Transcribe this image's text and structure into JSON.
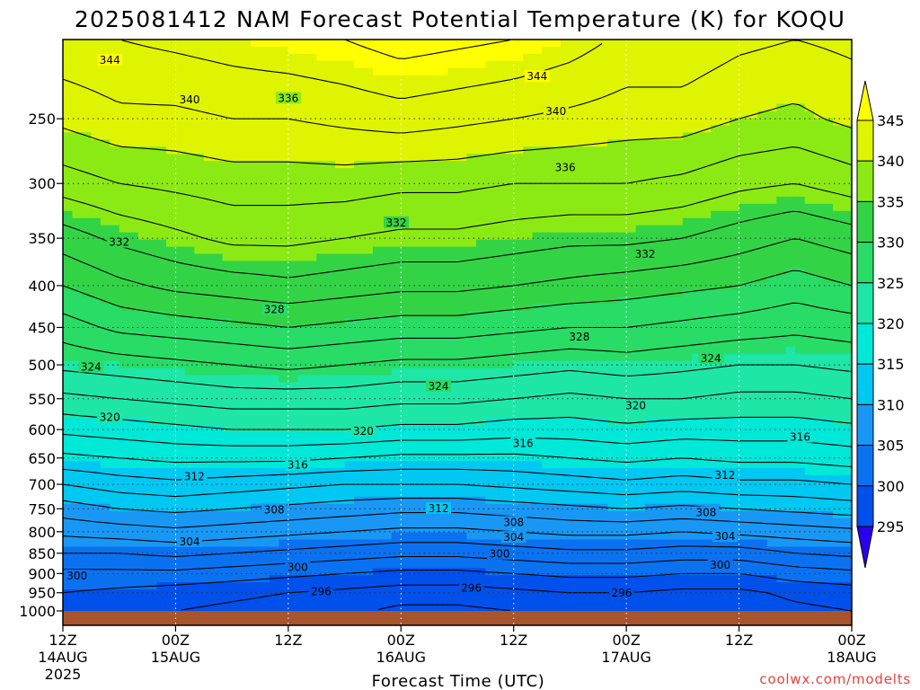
{
  "chart_data": {
    "type": "filled-contour",
    "title": "2025081412 NAM Forecast Potential Temperature (K) for KOQU",
    "xlabel": "Forecast Time (UTC)",
    "ylabel": "",
    "credit": "coolwx.com/modelts",
    "y_scale": "log-pressure",
    "y_inverted": true,
    "ylim_hpa": [
      1000,
      200
    ],
    "y_ticks": [
      {
        "value": 250,
        "label": "250"
      },
      {
        "value": 300,
        "label": "300"
      },
      {
        "value": 350,
        "label": "350"
      },
      {
        "value": 400,
        "label": "400"
      },
      {
        "value": 450,
        "label": "450"
      },
      {
        "value": 500,
        "label": "500"
      },
      {
        "value": 550,
        "label": "550"
      },
      {
        "value": 600,
        "label": "600"
      },
      {
        "value": 650,
        "label": "650"
      },
      {
        "value": 700,
        "label": "700"
      },
      {
        "value": 750,
        "label": "750"
      },
      {
        "value": 800,
        "label": "800"
      },
      {
        "value": 850,
        "label": "850"
      },
      {
        "value": 900,
        "label": "900"
      },
      {
        "value": 950,
        "label": "950"
      },
      {
        "value": 1000,
        "label": "1000"
      }
    ],
    "xlim_hours": [
      0,
      84
    ],
    "x_ticks": [
      {
        "hour": 0,
        "label": "12Z",
        "date": "14AUG",
        "year": "2025"
      },
      {
        "hour": 12,
        "label": "00Z",
        "date": "15AUG"
      },
      {
        "hour": 24,
        "label": "12Z"
      },
      {
        "hour": 36,
        "label": "00Z",
        "date": "16AUG"
      },
      {
        "hour": 48,
        "label": "12Z"
      },
      {
        "hour": 60,
        "label": "00Z",
        "date": "17AUG"
      },
      {
        "hour": 72,
        "label": "12Z"
      },
      {
        "hour": 84,
        "label": "00Z",
        "date": "18AUG"
      }
    ],
    "grid": true,
    "colorbar": {
      "levels": [
        295,
        300,
        305,
        310,
        315,
        320,
        325,
        330,
        335,
        340,
        345
      ],
      "labels": [
        "295",
        "300",
        "305",
        "310",
        "315",
        "320",
        "325",
        "330",
        "335",
        "340",
        "345"
      ],
      "colors": [
        "#2a00ee",
        "#0050ec",
        "#0a72f0",
        "#1898f4",
        "#00c8f2",
        "#00e8d8",
        "#1ee6a6",
        "#28dc66",
        "#32d446",
        "#8cea14",
        "#dff400",
        "#ffff00"
      ]
    },
    "ground_color": "#a8542c",
    "contour_interval": 2,
    "contour_labels": [
      {
        "value": 344,
        "hour": 5.0,
        "p": 212
      },
      {
        "value": 340,
        "hour": 13.5,
        "p": 237
      },
      {
        "value": 336,
        "hour": 24.0,
        "p": 236
      },
      {
        "value": 344,
        "hour": 50.5,
        "p": 222
      },
      {
        "value": 340,
        "hour": 52.5,
        "p": 245
      },
      {
        "value": 336,
        "hour": 53.5,
        "p": 287
      },
      {
        "value": 332,
        "hour": 6.0,
        "p": 354
      },
      {
        "value": 332,
        "hour": 35.5,
        "p": 335
      },
      {
        "value": 332,
        "hour": 62.0,
        "p": 366
      },
      {
        "value": 328,
        "hour": 22.5,
        "p": 428
      },
      {
        "value": 328,
        "hour": 55.0,
        "p": 462
      },
      {
        "value": 324,
        "hour": 3.0,
        "p": 503
      },
      {
        "value": 324,
        "hour": 40.0,
        "p": 531
      },
      {
        "value": 324,
        "hour": 69.0,
        "p": 491
      },
      {
        "value": 320,
        "hour": 5.0,
        "p": 580
      },
      {
        "value": 320,
        "hour": 32.0,
        "p": 603
      },
      {
        "value": 320,
        "hour": 61.0,
        "p": 561
      },
      {
        "value": 316,
        "hour": 25.0,
        "p": 663
      },
      {
        "value": 316,
        "hour": 49.0,
        "p": 624
      },
      {
        "value": 316,
        "hour": 78.5,
        "p": 613
      },
      {
        "value": 312,
        "hour": 14.0,
        "p": 685
      },
      {
        "value": 312,
        "hour": 40.0,
        "p": 749
      },
      {
        "value": 312,
        "hour": 70.5,
        "p": 682
      },
      {
        "value": 308,
        "hour": 22.5,
        "p": 752
      },
      {
        "value": 308,
        "hour": 48.0,
        "p": 779
      },
      {
        "value": 308,
        "hour": 68.5,
        "p": 758
      },
      {
        "value": 304,
        "hour": 13.5,
        "p": 823
      },
      {
        "value": 304,
        "hour": 48.0,
        "p": 813
      },
      {
        "value": 304,
        "hour": 70.5,
        "p": 811
      },
      {
        "value": 300,
        "hour": 1.5,
        "p": 906
      },
      {
        "value": 300,
        "hour": 25.0,
        "p": 884
      },
      {
        "value": 300,
        "hour": 46.5,
        "p": 852
      },
      {
        "value": 300,
        "hour": 70.0,
        "p": 879
      },
      {
        "value": 296,
        "hour": 27.5,
        "p": 947
      },
      {
        "value": 296,
        "hour": 43.5,
        "p": 938
      },
      {
        "value": 296,
        "hour": 59.5,
        "p": 951
      }
    ],
    "profile_pressures": [
      1000,
      950,
      900,
      850,
      800,
      750,
      700,
      650,
      600,
      550,
      500,
      450,
      400,
      350,
      300,
      250,
      200
    ],
    "profiles": [
      {
        "hour": 0,
        "theta": [
          299,
          300,
          301.5,
          304,
          306.5,
          309,
          312,
          315.5,
          318.5,
          321.5,
          324.5,
          327,
          330,
          333,
          337,
          340.5,
          343.5
        ]
      },
      {
        "hour": 6,
        "theta": [
          298.5,
          299.5,
          301.5,
          304,
          307,
          310,
          313,
          316,
          319,
          322,
          325,
          328.5,
          331.5,
          334.5,
          338,
          341.5,
          344
        ]
      },
      {
        "hour": 12,
        "theta": [
          298,
          299,
          301.5,
          304.5,
          307.5,
          310.5,
          313.5,
          316.5,
          319.5,
          322.5,
          325.5,
          329,
          332.5,
          335.5,
          338.5,
          341.5,
          344.5
        ]
      },
      {
        "hour": 18,
        "theta": [
          297.5,
          298.5,
          301,
          304,
          307,
          310,
          313,
          316.5,
          320,
          323,
          326,
          329.5,
          333,
          336.5,
          339,
          342,
          345
        ]
      },
      {
        "hour": 24,
        "theta": [
          297,
          298,
          300.5,
          303.5,
          306.5,
          309.5,
          312.5,
          316.5,
          320,
          323,
          326.5,
          330,
          333.5,
          336.5,
          339,
          342,
          345.5
        ]
      },
      {
        "hour": 30,
        "theta": [
          296.5,
          297.5,
          300,
          303,
          306,
          309,
          312,
          316,
          320,
          323,
          326,
          329.5,
          333,
          336,
          339,
          342.5,
          346
        ]
      },
      {
        "hour": 36,
        "theta": [
          295.5,
          297,
          299.5,
          302.5,
          305.5,
          308.5,
          312,
          315.5,
          319.5,
          322.5,
          325.5,
          329,
          332.5,
          335.5,
          338.5,
          343,
          347
        ]
      },
      {
        "hour": 42,
        "theta": [
          295.5,
          297,
          299.5,
          302.5,
          305.5,
          308.5,
          312,
          315.5,
          319.5,
          322.5,
          325.5,
          329,
          332.5,
          335.5,
          338.5,
          342.5,
          346.5
        ]
      },
      {
        "hour": 48,
        "theta": [
          296,
          297.5,
          300,
          303,
          306,
          309,
          312.5,
          315.5,
          319,
          322,
          325,
          328.5,
          332,
          335,
          338,
          342,
          346
        ]
      },
      {
        "hour": 54,
        "theta": [
          296.5,
          298,
          300.5,
          303.5,
          306.5,
          309.5,
          313,
          316,
          319,
          321.5,
          324.5,
          328,
          331.5,
          334.5,
          338,
          341.5,
          345
        ]
      },
      {
        "hour": 60,
        "theta": [
          297,
          298,
          300.5,
          303.5,
          306.5,
          310,
          313.5,
          316.5,
          319.5,
          322,
          325,
          328,
          331,
          334.5,
          338,
          341,
          343.5
        ]
      },
      {
        "hour": 66,
        "theta": [
          296.5,
          297.5,
          300,
          303,
          306,
          309.5,
          313,
          316,
          319,
          322,
          324.5,
          327.5,
          330.5,
          334,
          337.5,
          341,
          343.5
        ]
      },
      {
        "hour": 72,
        "theta": [
          296.5,
          297.5,
          300,
          303,
          306.5,
          310,
          313.5,
          316.5,
          319,
          321.5,
          324,
          327,
          330,
          333,
          336.5,
          340,
          342.5
        ]
      },
      {
        "hour": 78,
        "theta": [
          297.5,
          298.5,
          301,
          304,
          307,
          310.5,
          313.5,
          316.5,
          319,
          321.5,
          324,
          326.5,
          329,
          332,
          336,
          339.5,
          342
        ]
      },
      {
        "hour": 84,
        "theta": [
          298,
          299,
          301.5,
          304.5,
          307.5,
          311,
          314,
          317,
          319.5,
          322,
          324.5,
          327,
          330,
          333,
          337,
          340.5,
          342.5
        ]
      }
    ]
  }
}
